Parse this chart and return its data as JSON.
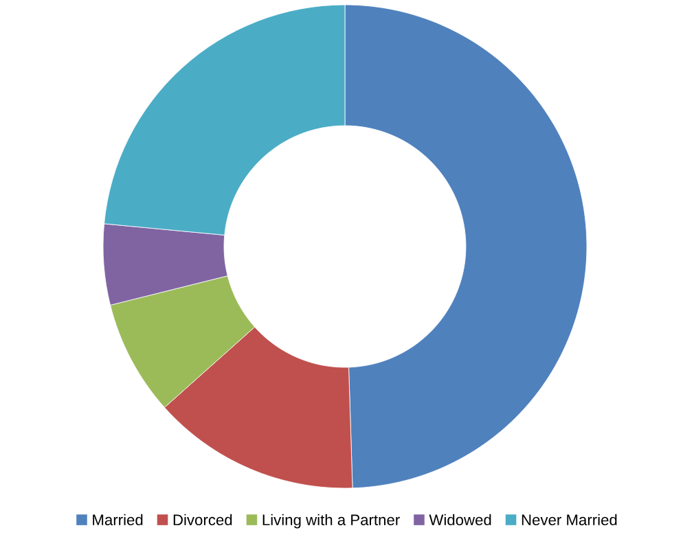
{
  "chart_data": {
    "type": "donut",
    "categories": [
      "Married",
      "Divorced",
      "Living with a Partner",
      "Widowed",
      "Never Married"
    ],
    "values": [
      49.5,
      13.9,
      7.7,
      5.4,
      23.5
    ],
    "colors": [
      "#4f81bd",
      "#c0504d",
      "#9bbb59",
      "#8064a2",
      "#4bacc6"
    ],
    "legend": "bottom"
  }
}
